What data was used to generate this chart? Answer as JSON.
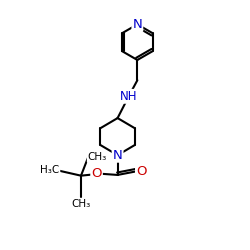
{
  "bg_color": "#ffffff",
  "atom_color_N": "#0000cc",
  "atom_color_O": "#cc0000",
  "atom_color_C": "#000000",
  "bond_color": "#000000",
  "bond_width": 1.5,
  "font_size_atom": 8.5,
  "font_size_small": 7.5,
  "xlim": [
    0,
    10
  ],
  "ylim": [
    0,
    10
  ]
}
